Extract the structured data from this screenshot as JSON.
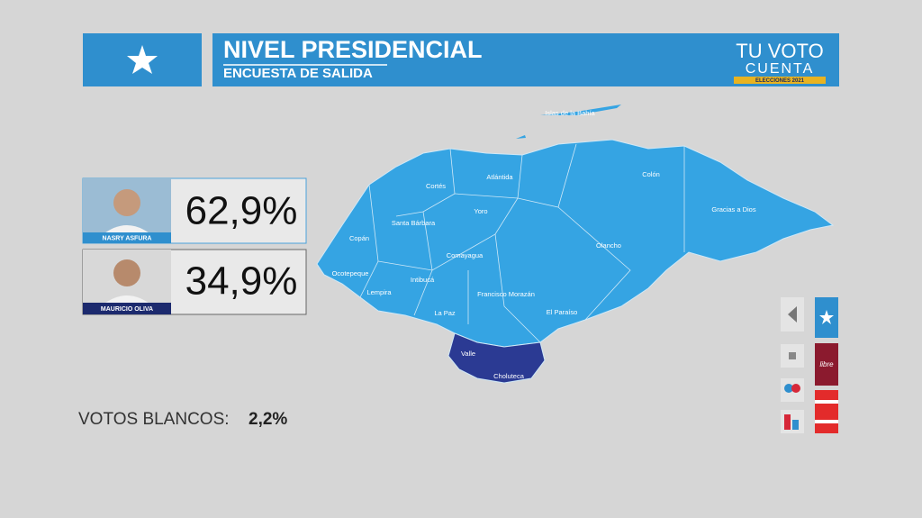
{
  "header": {
    "title": "NIVEL PRESIDENCIAL",
    "subtitle": "ENCUESTA DE SALIDA",
    "logo": {
      "line1": "TU VOTO",
      "line2": "CUENTA",
      "line3": "ELECCIONES 2021"
    }
  },
  "candidates": [
    {
      "name": "NASRY ASFURA",
      "result": "62,9%"
    },
    {
      "name": "MAURICIO OLIVA",
      "result": "34,9%"
    }
  ],
  "blank_votes": {
    "label": "VOTOS BLANCOS:",
    "result": "2,2%"
  },
  "map": {
    "labels": [
      "Islas de la Bahía",
      "Atlántida",
      "Colón",
      "Cortés",
      "Yoro",
      "Gracias a Dios",
      "Santa Bárbara",
      "Copán",
      "Olancho",
      "Comayagua",
      "Ocotepeque",
      "Intibucá",
      "Lempira",
      "Francisco Morazán",
      "El Paraíso",
      "La Paz",
      "Valle",
      "Choluteca"
    ]
  },
  "controls": {
    "party_label": "libre"
  }
}
